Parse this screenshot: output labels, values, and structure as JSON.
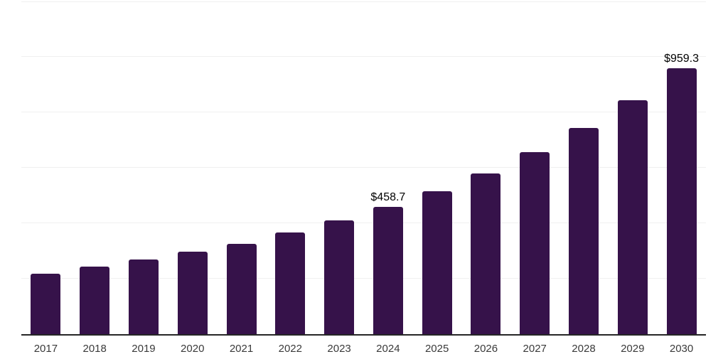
{
  "chart_data": {
    "type": "bar",
    "title": "",
    "categories": [
      "2017",
      "2018",
      "2019",
      "2020",
      "2021",
      "2022",
      "2023",
      "2024",
      "2025",
      "2026",
      "2027",
      "2028",
      "2029",
      "2030"
    ],
    "values": [
      218,
      244,
      269,
      297,
      326,
      367,
      410,
      458.7,
      516,
      580,
      656,
      744,
      843,
      959.3
    ],
    "data_labels": {
      "2024": "$458.7",
      "2030": "$959.3"
    },
    "ylim": [
      0,
      1200
    ],
    "gridline_step": 200,
    "grid": "horizontal gridlines only, no y-axis tick labels",
    "legend": "none",
    "xlabel": "",
    "ylabel": "",
    "colors": {
      "bar": "#36124a",
      "gridline": "#f0f0f0",
      "axis_line": "#262626",
      "tick_label": "#3a3a3a",
      "data_label": "#000000",
      "background": "#ffffff"
    }
  }
}
